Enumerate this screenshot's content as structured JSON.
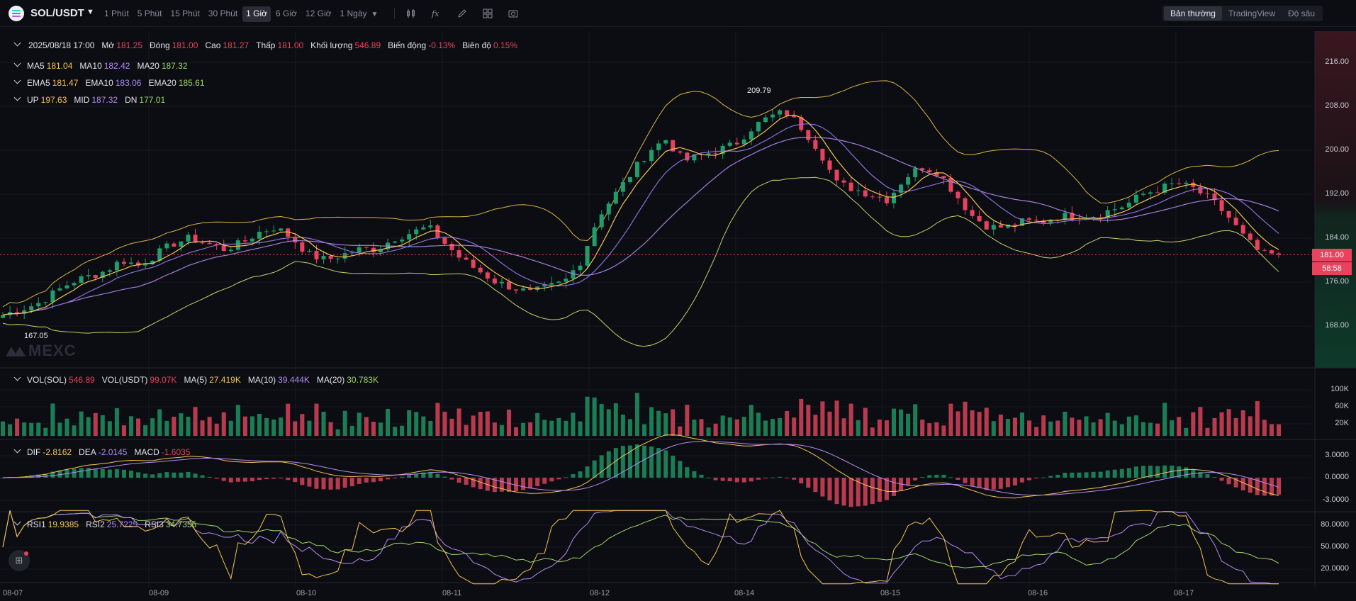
{
  "toolbar": {
    "symbol": "SOL/USDT",
    "intervals": [
      "1 Phút",
      "5 Phút",
      "15 Phút",
      "30 Phút",
      "1 Giờ",
      "6 Giờ",
      "12 Giờ",
      "1 Ngày"
    ],
    "active_interval": "1 Giờ",
    "tool_icons": [
      "candle-type-icon",
      "indicator-fx-icon",
      "draw-pen-icon",
      "layout-grid-icon",
      "camera-icon"
    ],
    "views": [
      "Bản thường",
      "TradingView",
      "Độ sâu"
    ],
    "active_view": "Bản thường"
  },
  "ohlc": {
    "date": "2025/08/18 17:00",
    "open_label": "Mở",
    "open": "181.25",
    "close_label": "Đóng",
    "close": "181.00",
    "high_label": "Cao",
    "high": "181.27",
    "low_label": "Thấp",
    "low": "181.00",
    "volume_label": "Khối lượng",
    "volume": "546.89",
    "change_label": "Biến động",
    "change": "-0.13%",
    "amplitude_label": "Biên độ",
    "amplitude": "0.15%"
  },
  "ma": {
    "ma5_label": "MA5",
    "ma5": "181.04",
    "ma10_label": "MA10",
    "ma10": "182.42",
    "ma20_label": "MA20",
    "ma20": "187.32"
  },
  "ema": {
    "ema5_label": "EMA5",
    "ema5": "181.47",
    "ema10_label": "EMA10",
    "ema10": "183.06",
    "ema20_label": "EMA20",
    "ema20": "185.61"
  },
  "boll": {
    "up_label": "UP",
    "up": "197.63",
    "mid_label": "MID",
    "mid": "187.32",
    "dn_label": "DN",
    "dn": "177.01"
  },
  "vol": {
    "sol_label": "VOL(SOL)",
    "sol": "546.89",
    "usdt_label": "VOL(USDT)",
    "usdt": "99.07K",
    "ma5_label": "MA(5)",
    "ma5": "27.419K",
    "ma10_label": "MA(10)",
    "ma10": "39.444K",
    "ma20_label": "MA(20)",
    "ma20": "30.783K"
  },
  "macd": {
    "dif_label": "DIF",
    "dif": "-2.8162",
    "dea_label": "DEA",
    "dea": "-2.0145",
    "macd_label": "MACD",
    "macd": "-1.6035"
  },
  "rsi": {
    "rsi1_label": "RSI1",
    "rsi1": "19.9385",
    "rsi2_label": "RSI2",
    "rsi2": "25.7225",
    "rsi3_label": "RSI3",
    "rsi3": "34.7355"
  },
  "watermark": "MEXC",
  "annotations": {
    "high": "209.79",
    "low": "167.05"
  },
  "last_price": {
    "price": "181.00",
    "countdown": "58:58"
  },
  "colors": {
    "up": "#1f9d6b",
    "down": "#e8425c",
    "ma5": "#f5c452",
    "ma10": "#b48cf2",
    "ma20": "#9fd56a",
    "boll": "#d9b545"
  },
  "axes": {
    "price_ticks": [
      "216.00",
      "208.00",
      "200.00",
      "192.00",
      "184.00",
      "176.00",
      "168.00"
    ],
    "volume_ticks": [
      "100K",
      "60K",
      "20K"
    ],
    "macd_ticks": [
      "3.0000",
      "0.0000",
      "-3.0000"
    ],
    "rsi_ticks": [
      "80.0000",
      "50.0000",
      "20.0000"
    ],
    "time_ticks": [
      "08-07",
      "08-09",
      "08-10",
      "08-11",
      "08-12",
      "08-14",
      "08-15",
      "08-16",
      "08-17"
    ]
  },
  "chart_data": {
    "type": "line",
    "series": [
      {
        "values": [
          170,
          171,
          172,
          174,
          176,
          177,
          178,
          180,
          179,
          181,
          183,
          184,
          183,
          182,
          183,
          185,
          186,
          184,
          181,
          180,
          181,
          182,
          182,
          184,
          185,
          186,
          183,
          180,
          178,
          176,
          175,
          174,
          175,
          176,
          180,
          188,
          192,
          196,
          200,
          202,
          198,
          199,
          200,
          201,
          204,
          206,
          207,
          204,
          200,
          194,
          193,
          192,
          191,
          195,
          197,
          196,
          192,
          188,
          186,
          186,
          187,
          187,
          188,
          188,
          188,
          189,
          190,
          192,
          193,
          194,
          193,
          191,
          188,
          184,
          181,
          181
        ]
      }
    ]
  }
}
